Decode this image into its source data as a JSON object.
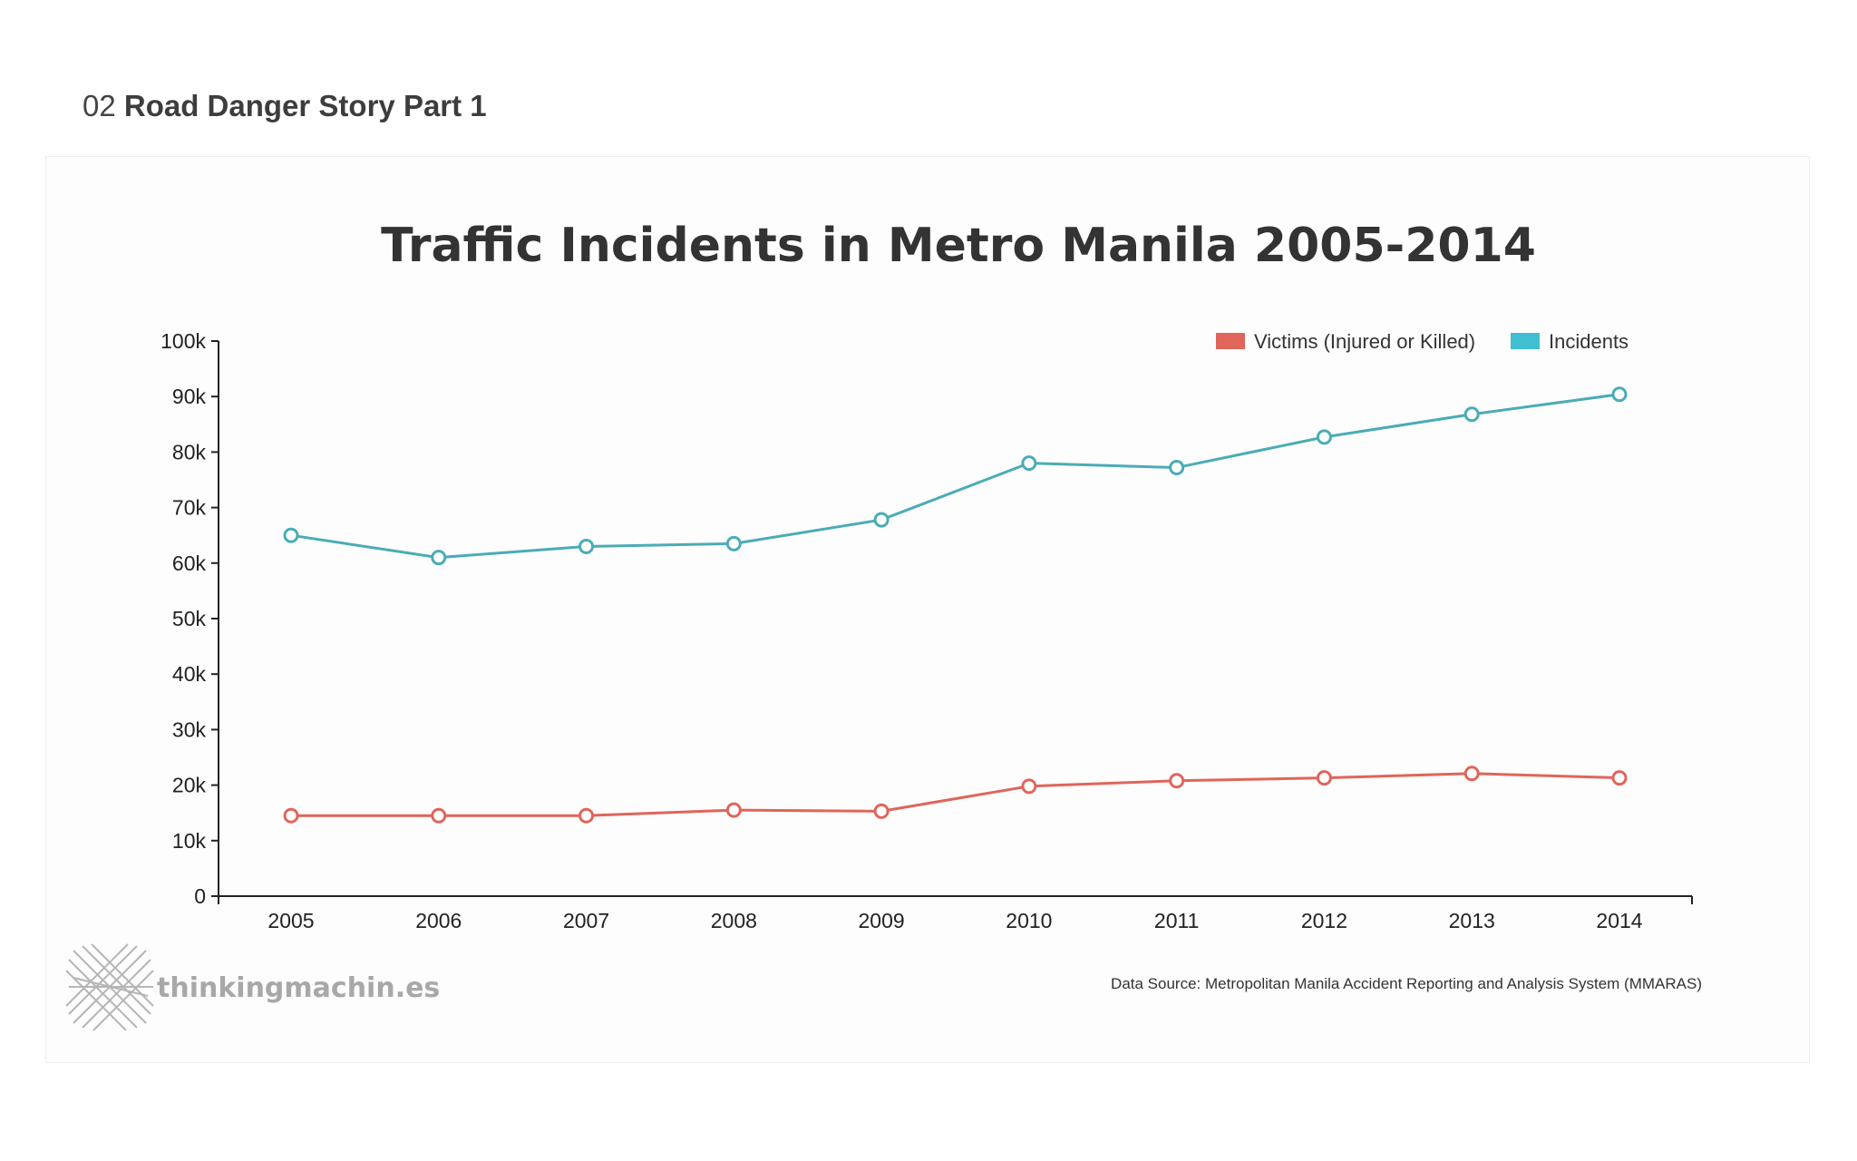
{
  "heading": {
    "number": "02",
    "title": "Road Danger Story Part 1"
  },
  "logo": {
    "text": "thinkingmachin.es",
    "icon": "crossed-lines-logo-icon"
  },
  "source": "Data Source: Metropolitan Manila Accident Reporting and Analysis System (MMARAS)",
  "colors": {
    "victims": "#e0655a",
    "incidents": "#4aacb6",
    "legend_incidents": "#3fbfd0",
    "axis": "#222222"
  },
  "chart_data": {
    "type": "line",
    "title": "Traffic Incidents in Metro Manila 2005-2014",
    "xlabel": "",
    "ylabel": "",
    "categories": [
      "2005",
      "2006",
      "2007",
      "2008",
      "2009",
      "2010",
      "2011",
      "2012",
      "2013",
      "2014"
    ],
    "ylim": [
      0,
      100000
    ],
    "yticks": [
      0,
      10000,
      20000,
      30000,
      40000,
      50000,
      60000,
      70000,
      80000,
      90000,
      100000
    ],
    "ytick_labels": [
      "0",
      "10k",
      "20k",
      "30k",
      "40k",
      "50k",
      "60k",
      "70k",
      "80k",
      "90k",
      "100k"
    ],
    "legend_position": "top-right",
    "grid": false,
    "series": [
      {
        "name": "Victims (Injured or Killed)",
        "key": "victims",
        "values": [
          14500,
          14500,
          14500,
          15500,
          15300,
          19800,
          20800,
          21300,
          22100,
          21300
        ]
      },
      {
        "name": "Incidents",
        "key": "incidents",
        "values": [
          65000,
          61000,
          63000,
          63500,
          67800,
          78000,
          77200,
          82700,
          86800,
          90400
        ]
      }
    ]
  }
}
